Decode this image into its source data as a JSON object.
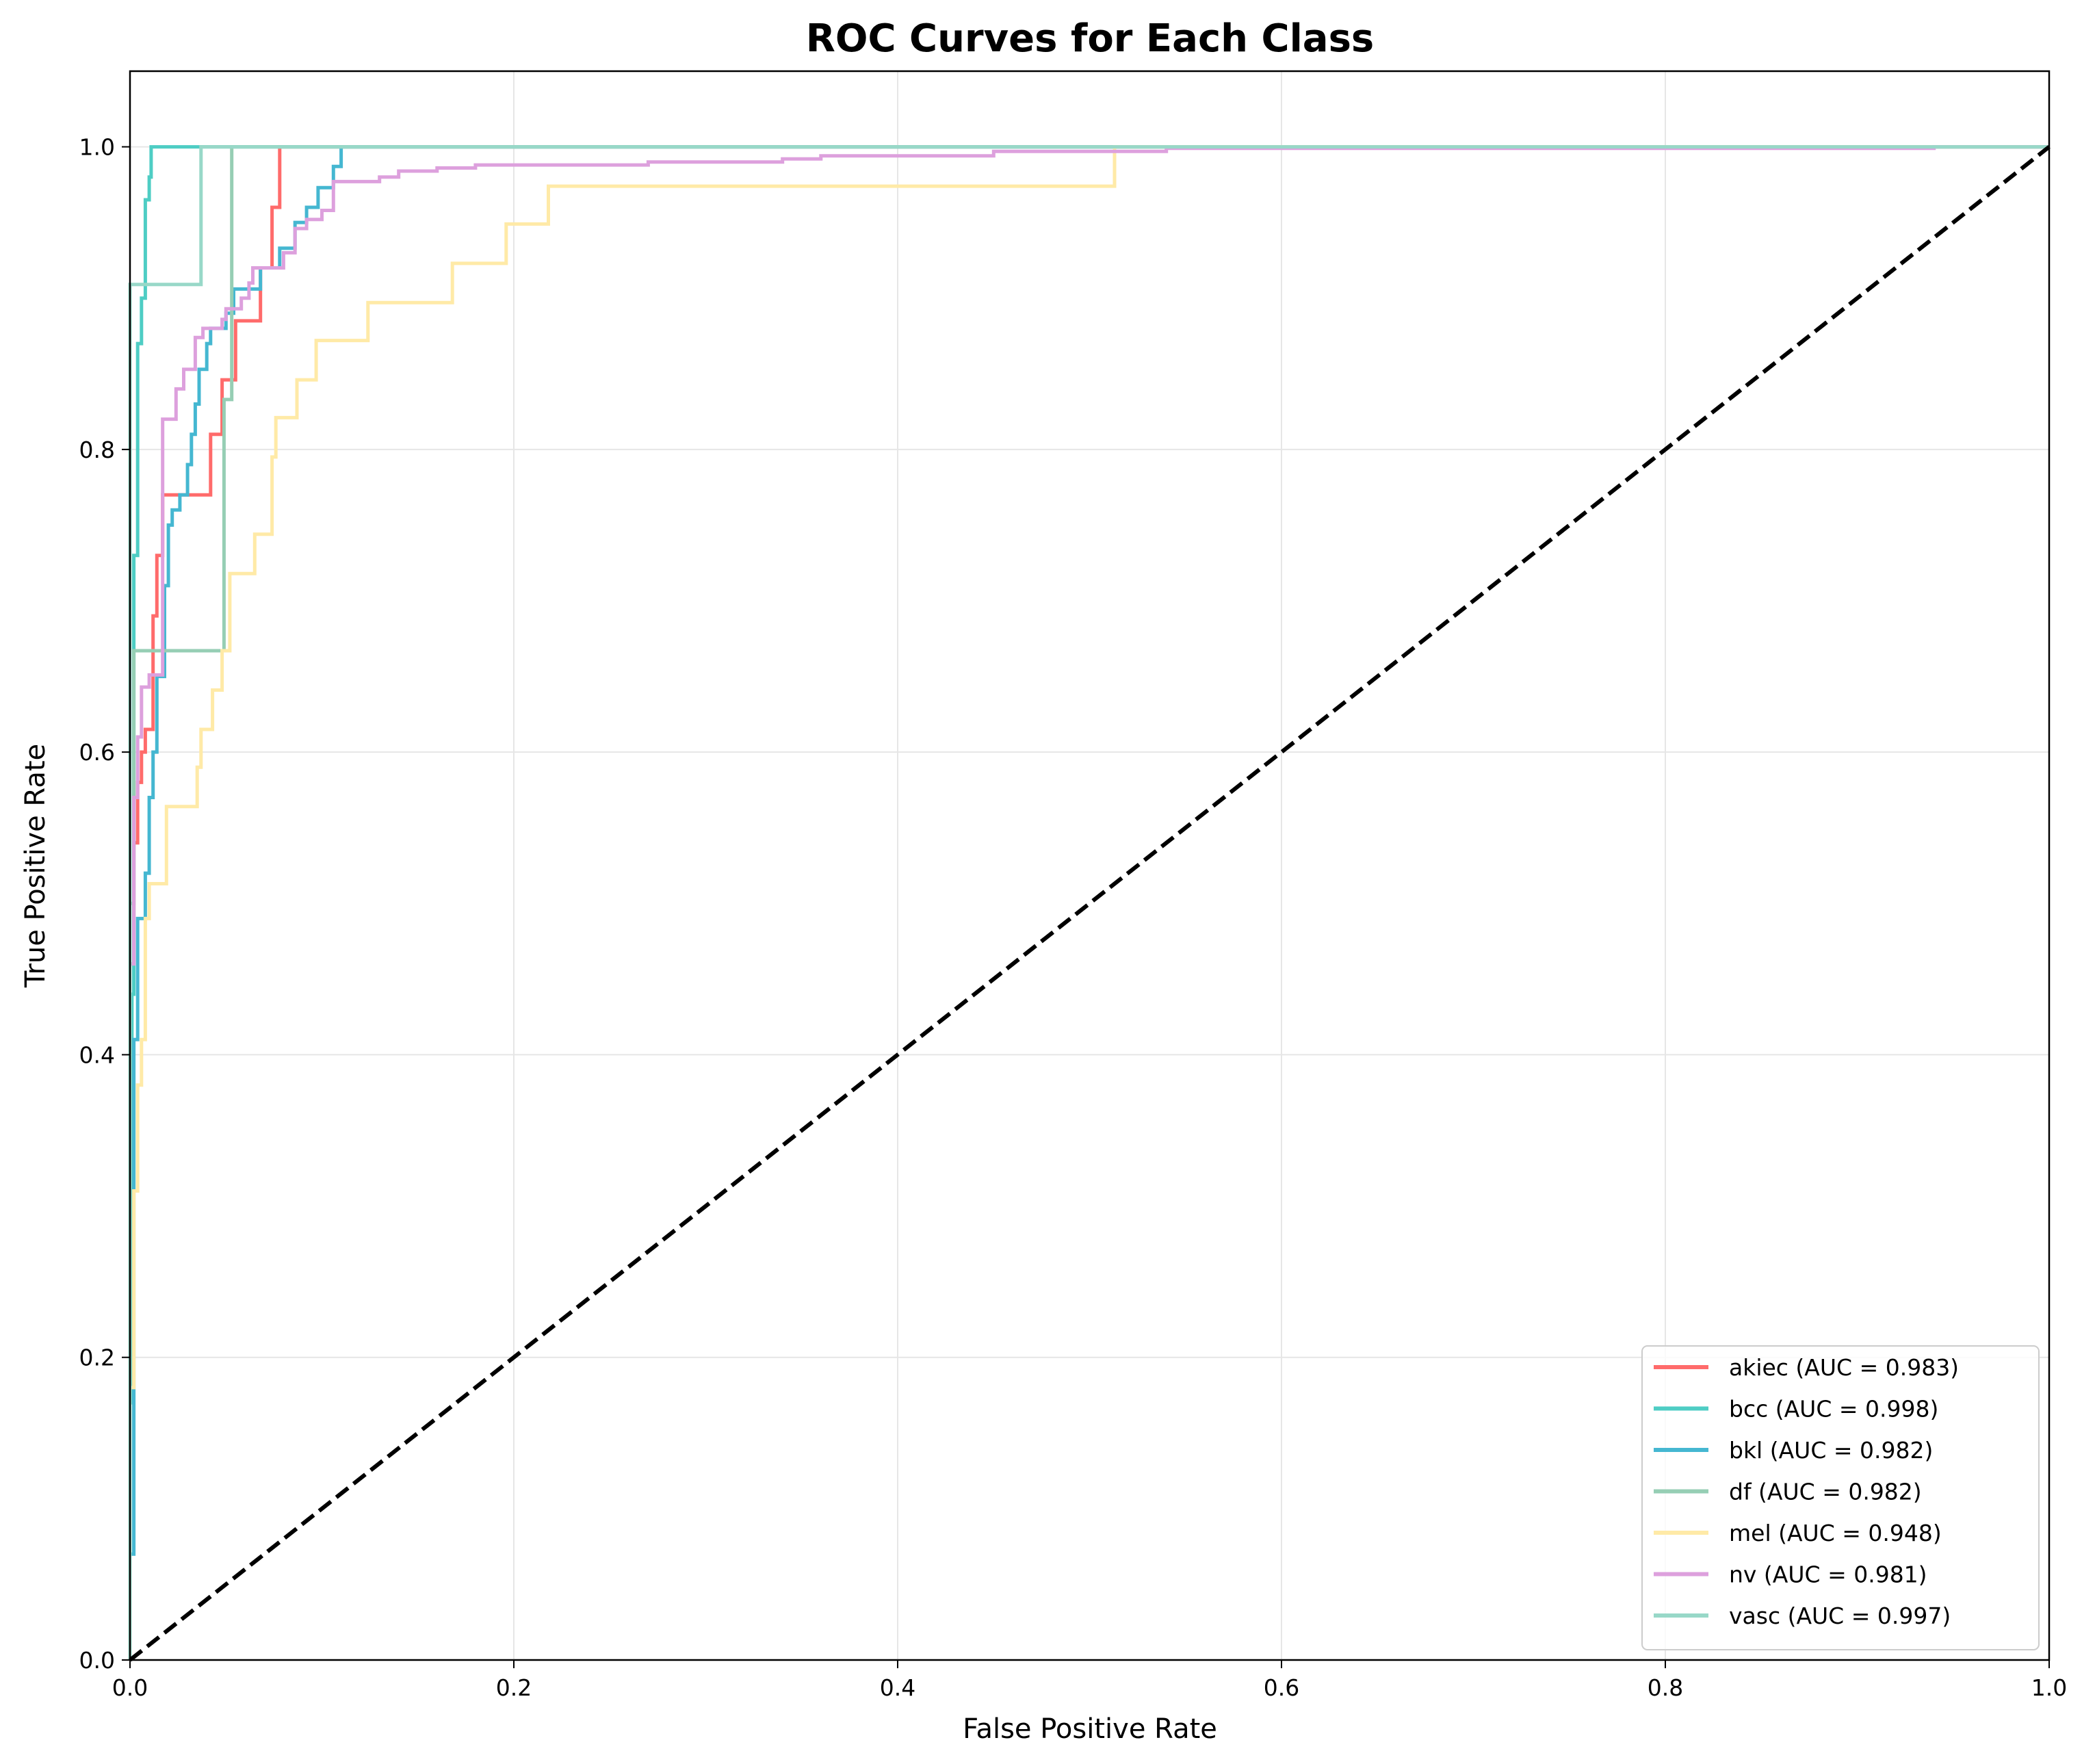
{
  "chart_data": {
    "type": "line",
    "title": "ROC Curves for Each Class",
    "xlabel": "False Positive Rate",
    "ylabel": "True Positive Rate",
    "xlim": [
      0.0,
      1.0
    ],
    "ylim": [
      0.0,
      1.05
    ],
    "xticks": [
      0.0,
      0.2,
      0.4,
      0.6,
      0.8,
      1.0
    ],
    "xtick_labels": [
      "0.0",
      "0.2",
      "0.4",
      "0.6",
      "0.8",
      "1.0"
    ],
    "yticks": [
      0.0,
      0.2,
      0.4,
      0.6,
      0.8,
      1.0
    ],
    "ytick_labels": [
      "0.0",
      "0.2",
      "0.4",
      "0.6",
      "0.8",
      "1.0"
    ],
    "grid": true,
    "legend_position": "lower-right",
    "series": [
      {
        "name": "akiec (AUC = 0.983)",
        "color": "#ff6b6b",
        "points": [
          [
            0,
            0
          ],
          [
            0,
            0.46
          ],
          [
            0.002,
            0.46
          ],
          [
            0.002,
            0.54
          ],
          [
            0.004,
            0.54
          ],
          [
            0.004,
            0.58
          ],
          [
            0.006,
            0.58
          ],
          [
            0.006,
            0.6
          ],
          [
            0.008,
            0.6
          ],
          [
            0.008,
            0.615
          ],
          [
            0.012,
            0.615
          ],
          [
            0.012,
            0.69
          ],
          [
            0.014,
            0.69
          ],
          [
            0.014,
            0.73
          ],
          [
            0.017,
            0.73
          ],
          [
            0.017,
            0.77
          ],
          [
            0.042,
            0.77
          ],
          [
            0.042,
            0.81
          ],
          [
            0.048,
            0.81
          ],
          [
            0.048,
            0.846
          ],
          [
            0.055,
            0.846
          ],
          [
            0.055,
            0.885
          ],
          [
            0.068,
            0.885
          ],
          [
            0.068,
            0.92
          ],
          [
            0.074,
            0.92
          ],
          [
            0.074,
            0.96
          ],
          [
            0.078,
            0.96
          ],
          [
            0.078,
            1.0
          ],
          [
            1.0,
            1.0
          ]
        ]
      },
      {
        "name": "bcc (AUC = 0.998)",
        "color": "#4ecdc4",
        "points": [
          [
            0,
            0
          ],
          [
            0,
            0.17
          ],
          [
            0.001,
            0.17
          ],
          [
            0.001,
            0.44
          ],
          [
            0.002,
            0.44
          ],
          [
            0.002,
            0.73
          ],
          [
            0.004,
            0.73
          ],
          [
            0.004,
            0.87
          ],
          [
            0.006,
            0.87
          ],
          [
            0.006,
            0.9
          ],
          [
            0.008,
            0.9
          ],
          [
            0.008,
            0.965
          ],
          [
            0.01,
            0.965
          ],
          [
            0.01,
            0.98
          ],
          [
            0.011,
            0.98
          ],
          [
            0.011,
            1.0
          ],
          [
            1.0,
            1.0
          ]
        ]
      },
      {
        "name": "bkl (AUC = 0.982)",
        "color": "#45b7d1",
        "points": [
          [
            0,
            0
          ],
          [
            0,
            0.07
          ],
          [
            0.002,
            0.07
          ],
          [
            0.002,
            0.41
          ],
          [
            0.004,
            0.41
          ],
          [
            0.004,
            0.49
          ],
          [
            0.008,
            0.49
          ],
          [
            0.008,
            0.52
          ],
          [
            0.01,
            0.52
          ],
          [
            0.01,
            0.57
          ],
          [
            0.012,
            0.57
          ],
          [
            0.012,
            0.6
          ],
          [
            0.014,
            0.6
          ],
          [
            0.014,
            0.65
          ],
          [
            0.018,
            0.65
          ],
          [
            0.018,
            0.71
          ],
          [
            0.02,
            0.71
          ],
          [
            0.02,
            0.75
          ],
          [
            0.022,
            0.75
          ],
          [
            0.022,
            0.76
          ],
          [
            0.026,
            0.76
          ],
          [
            0.026,
            0.77
          ],
          [
            0.03,
            0.77
          ],
          [
            0.03,
            0.79
          ],
          [
            0.032,
            0.79
          ],
          [
            0.032,
            0.81
          ],
          [
            0.034,
            0.81
          ],
          [
            0.034,
            0.83
          ],
          [
            0.036,
            0.83
          ],
          [
            0.036,
            0.853
          ],
          [
            0.04,
            0.853
          ],
          [
            0.04,
            0.87
          ],
          [
            0.042,
            0.87
          ],
          [
            0.042,
            0.88
          ],
          [
            0.05,
            0.88
          ],
          [
            0.05,
            0.89
          ],
          [
            0.054,
            0.89
          ],
          [
            0.054,
            0.906
          ],
          [
            0.068,
            0.906
          ],
          [
            0.068,
            0.92
          ],
          [
            0.078,
            0.92
          ],
          [
            0.078,
            0.933
          ],
          [
            0.086,
            0.933
          ],
          [
            0.086,
            0.95
          ],
          [
            0.092,
            0.95
          ],
          [
            0.092,
            0.96
          ],
          [
            0.098,
            0.96
          ],
          [
            0.098,
            0.973
          ],
          [
            0.106,
            0.973
          ],
          [
            0.106,
            0.987
          ],
          [
            0.11,
            0.987
          ],
          [
            0.11,
            1.0
          ],
          [
            1.0,
            1.0
          ]
        ]
      },
      {
        "name": "df (AUC = 0.982)",
        "color": "#96ceb4",
        "points": [
          [
            0,
            0
          ],
          [
            0,
            0.5
          ],
          [
            0.002,
            0.5
          ],
          [
            0.002,
            0.667
          ],
          [
            0.049,
            0.667
          ],
          [
            0.049,
            0.833
          ],
          [
            0.053,
            0.833
          ],
          [
            0.053,
            1.0
          ],
          [
            1.0,
            1.0
          ]
        ]
      },
      {
        "name": "mel (AUC = 0.948)",
        "color": "#ffeaa7",
        "points": [
          [
            0,
            0
          ],
          [
            0,
            0.18
          ],
          [
            0.002,
            0.18
          ],
          [
            0.002,
            0.31
          ],
          [
            0.004,
            0.31
          ],
          [
            0.004,
            0.38
          ],
          [
            0.006,
            0.38
          ],
          [
            0.006,
            0.41
          ],
          [
            0.008,
            0.41
          ],
          [
            0.008,
            0.49
          ],
          [
            0.01,
            0.49
          ],
          [
            0.01,
            0.513
          ],
          [
            0.019,
            0.513
          ],
          [
            0.019,
            0.564
          ],
          [
            0.035,
            0.564
          ],
          [
            0.035,
            0.59
          ],
          [
            0.037,
            0.59
          ],
          [
            0.037,
            0.615
          ],
          [
            0.043,
            0.615
          ],
          [
            0.043,
            0.641
          ],
          [
            0.048,
            0.641
          ],
          [
            0.048,
            0.667
          ],
          [
            0.052,
            0.667
          ],
          [
            0.052,
            0.718
          ],
          [
            0.065,
            0.718
          ],
          [
            0.065,
            0.744
          ],
          [
            0.074,
            0.744
          ],
          [
            0.074,
            0.795
          ],
          [
            0.076,
            0.795
          ],
          [
            0.076,
            0.821
          ],
          [
            0.087,
            0.821
          ],
          [
            0.087,
            0.846
          ],
          [
            0.097,
            0.846
          ],
          [
            0.097,
            0.872
          ],
          [
            0.124,
            0.872
          ],
          [
            0.124,
            0.897
          ],
          [
            0.168,
            0.897
          ],
          [
            0.168,
            0.923
          ],
          [
            0.196,
            0.923
          ],
          [
            0.196,
            0.949
          ],
          [
            0.218,
            0.949
          ],
          [
            0.218,
            0.974
          ],
          [
            0.513,
            0.974
          ],
          [
            0.513,
            1.0
          ],
          [
            1.0,
            1.0
          ]
        ]
      },
      {
        "name": "nv (AUC = 0.981)",
        "color": "#dda0dd",
        "points": [
          [
            0,
            0
          ],
          [
            0,
            0.46
          ],
          [
            0.002,
            0.46
          ],
          [
            0.002,
            0.57
          ],
          [
            0.004,
            0.57
          ],
          [
            0.004,
            0.61
          ],
          [
            0.006,
            0.61
          ],
          [
            0.006,
            0.643
          ],
          [
            0.01,
            0.643
          ],
          [
            0.01,
            0.651
          ],
          [
            0.017,
            0.651
          ],
          [
            0.017,
            0.82
          ],
          [
            0.024,
            0.82
          ],
          [
            0.024,
            0.84
          ],
          [
            0.028,
            0.84
          ],
          [
            0.028,
            0.853
          ],
          [
            0.034,
            0.853
          ],
          [
            0.034,
            0.874
          ],
          [
            0.038,
            0.874
          ],
          [
            0.038,
            0.88
          ],
          [
            0.048,
            0.88
          ],
          [
            0.048,
            0.886
          ],
          [
            0.05,
            0.886
          ],
          [
            0.05,
            0.893
          ],
          [
            0.058,
            0.893
          ],
          [
            0.058,
            0.9
          ],
          [
            0.062,
            0.9
          ],
          [
            0.062,
            0.91
          ],
          [
            0.064,
            0.91
          ],
          [
            0.064,
            0.92
          ],
          [
            0.08,
            0.92
          ],
          [
            0.08,
            0.93
          ],
          [
            0.086,
            0.93
          ],
          [
            0.086,
            0.946
          ],
          [
            0.092,
            0.946
          ],
          [
            0.092,
            0.952
          ],
          [
            0.1,
            0.952
          ],
          [
            0.1,
            0.958
          ],
          [
            0.106,
            0.958
          ],
          [
            0.106,
            0.977
          ],
          [
            0.13,
            0.977
          ],
          [
            0.13,
            0.98
          ],
          [
            0.14,
            0.98
          ],
          [
            0.14,
            0.984
          ],
          [
            0.16,
            0.984
          ],
          [
            0.16,
            0.986
          ],
          [
            0.18,
            0.986
          ],
          [
            0.18,
            0.988
          ],
          [
            0.27,
            0.988
          ],
          [
            0.27,
            0.99
          ],
          [
            0.34,
            0.99
          ],
          [
            0.34,
            0.992
          ],
          [
            0.36,
            0.992
          ],
          [
            0.36,
            0.994
          ],
          [
            0.45,
            0.994
          ],
          [
            0.45,
            0.997
          ],
          [
            0.54,
            0.997
          ],
          [
            0.54,
            0.999
          ],
          [
            0.94,
            0.999
          ],
          [
            0.94,
            1.0
          ],
          [
            1.0,
            1.0
          ]
        ]
      },
      {
        "name": "vasc (AUC = 0.997)",
        "color": "#98d8c8",
        "points": [
          [
            0,
            0
          ],
          [
            0,
            0.909
          ],
          [
            0.037,
            0.909
          ],
          [
            0.037,
            1.0
          ],
          [
            1.0,
            1.0
          ]
        ]
      }
    ],
    "reference_line": {
      "points": [
        [
          0,
          0
        ],
        [
          1,
          1
        ]
      ],
      "color": "#000000",
      "style": "dashed"
    }
  }
}
